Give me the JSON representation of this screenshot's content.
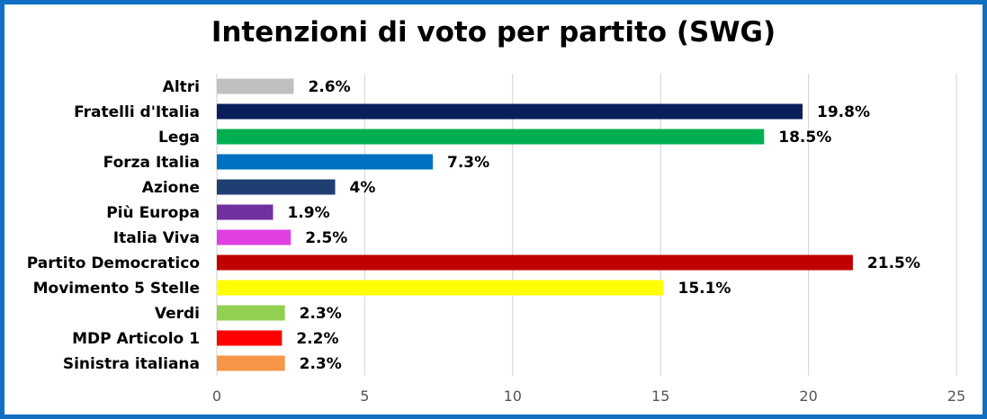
{
  "chart_data": {
    "type": "bar",
    "orientation": "horizontal",
    "title": "Intenzioni di voto per partito (SWG)",
    "xlabel": "",
    "ylabel": "",
    "xlim": [
      0,
      25
    ],
    "xticks": [
      0,
      5,
      10,
      15,
      20,
      25
    ],
    "grid": true,
    "legend": "none",
    "categories": [
      "Altri",
      "Fratelli d'Italia",
      "Lega",
      "Forza Italia",
      "Azione",
      "Più Europa",
      "Italia Viva",
      "Partito Democratico",
      "Movimento 5 Stelle",
      "Verdi",
      "MDP Articolo 1",
      "Sinistra italiana"
    ],
    "values": [
      2.6,
      19.8,
      18.5,
      7.3,
      4,
      1.9,
      2.5,
      21.5,
      15.1,
      2.3,
      2.2,
      2.3
    ],
    "value_labels": [
      "2.6%",
      "19.8%",
      "18.5%",
      "7.3%",
      "4%",
      "1.9%",
      "2.5%",
      "21.5%",
      "15.1%",
      "2.3%",
      "2.2%",
      "2.3%"
    ],
    "colors": [
      "#C0C0C0",
      "#0B1F5C",
      "#00B050",
      "#0070C0",
      "#1F3F73",
      "#7030A0",
      "#E040E0",
      "#C00000",
      "#FFFF00",
      "#92D050",
      "#FF0000",
      "#F79646"
    ]
  },
  "frame_color": "#1270C4"
}
